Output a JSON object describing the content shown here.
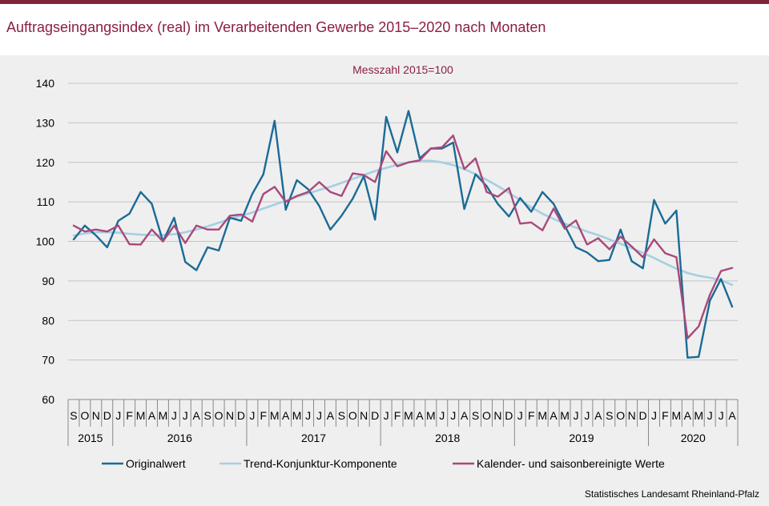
{
  "title": "Auftragseingangsindex (real) im Verarbeitenden Gewerbe 2015–2020 nach Monaten",
  "source": "Statistisches Landesamt Rheinland-Pfalz",
  "colors": {
    "accent": "#7d2339",
    "title": "#8b1f3f",
    "panel": "#efefef",
    "original": "#1a6b96",
    "trend": "#a6cfe2",
    "adjusted": "#a8497a"
  },
  "chart_data": {
    "type": "line",
    "subtitle": "Messzahl 2015=100",
    "ylim": [
      60,
      140
    ],
    "yticks": [
      60,
      70,
      80,
      90,
      100,
      110,
      120,
      130,
      140
    ],
    "grid": "horizontal",
    "legend_position": "bottom",
    "x": [
      "S",
      "O",
      "N",
      "D",
      "J",
      "F",
      "M",
      "A",
      "M",
      "J",
      "J",
      "A",
      "S",
      "O",
      "N",
      "D",
      "J",
      "F",
      "M",
      "A",
      "M",
      "J",
      "J",
      "A",
      "S",
      "O",
      "N",
      "D",
      "J",
      "F",
      "M",
      "A",
      "M",
      "J",
      "J",
      "A",
      "S",
      "O",
      "N",
      "D",
      "J",
      "F",
      "M",
      "A",
      "M",
      "J",
      "J",
      "A",
      "S",
      "O",
      "N",
      "D",
      "J",
      "F",
      "M",
      "A",
      "M",
      "J",
      "J",
      "A"
    ],
    "years": [
      {
        "label": "2015",
        "months": 4
      },
      {
        "label": "2016",
        "months": 12
      },
      {
        "label": "2017",
        "months": 12
      },
      {
        "label": "2018",
        "months": 12
      },
      {
        "label": "2019",
        "months": 12
      },
      {
        "label": "2020",
        "months": 8
      }
    ],
    "series": [
      {
        "name": "Originalwert",
        "color": "#1a6b96",
        "values": [
          100.5,
          104,
          101.5,
          98.5,
          105.2,
          107,
          112.5,
          109.5,
          100,
          106,
          94.8,
          92.7,
          98.5,
          97.7,
          106,
          105.2,
          112,
          117,
          130.5,
          108,
          115.5,
          113.2,
          109,
          103,
          106.5,
          110.8,
          116.5,
          105.5,
          131.5,
          122.5,
          133,
          121,
          123.5,
          123.5,
          125,
          108.2,
          117,
          114,
          109.5,
          106.3,
          111,
          107.5,
          112.5,
          109.5,
          104,
          98.5,
          97.2,
          95,
          95.3,
          103,
          95,
          93.2,
          110.5,
          104.5,
          107.8,
          70.6,
          70.8,
          85,
          90.5,
          83.5
        ]
      },
      {
        "name": "Trend-Konjunktur-Komponente",
        "color": "#a6cfe2",
        "values": [
          101.5,
          102,
          102.3,
          102.3,
          102.2,
          101.9,
          101.7,
          101.6,
          101.6,
          101.8,
          102.3,
          103,
          103.8,
          104.7,
          105.7,
          106.5,
          107.3,
          108.3,
          109.3,
          110.3,
          111.3,
          112.1,
          113,
          113.8,
          114.8,
          115.8,
          116.8,
          117.8,
          118.6,
          119.4,
          120,
          120.4,
          120.4,
          120,
          119.3,
          118.3,
          117,
          115.6,
          114,
          112.3,
          110.5,
          108.6,
          107,
          105.7,
          104.5,
          103.5,
          102.5,
          101.6,
          100.5,
          99.4,
          98.3,
          97.1,
          95.8,
          94.4,
          93.1,
          92,
          91.3,
          90.8,
          90.2,
          89
        ]
      },
      {
        "name": "Kalender- und saisonbereinigte Werte",
        "color": "#a8497a",
        "values": [
          104,
          102.5,
          103,
          102.5,
          104,
          99.3,
          99.2,
          103,
          100,
          104,
          99.6,
          104,
          103,
          103,
          106.5,
          106.8,
          105,
          112,
          113.8,
          110,
          111.5,
          112.5,
          115,
          112.5,
          111.5,
          117.2,
          116.8,
          115,
          122.8,
          119,
          120,
          120.5,
          123.5,
          123.8,
          126.8,
          118.3,
          121,
          112.5,
          111.3,
          113.5,
          104.5,
          104.8,
          102.8,
          108.3,
          103.2,
          105.3,
          99.2,
          100.8,
          98,
          101.2,
          98.7,
          96,
          100.5,
          97,
          96,
          75.5,
          78.5,
          86.5,
          92.5,
          93.3
        ]
      }
    ]
  }
}
